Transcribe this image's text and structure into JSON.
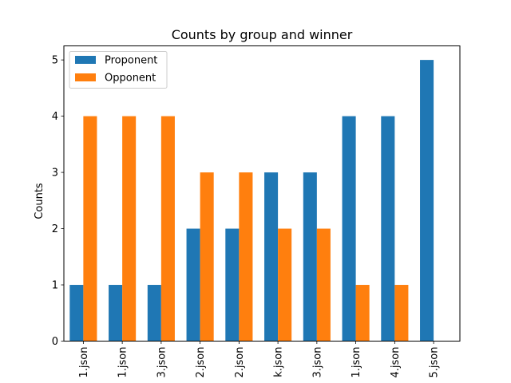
{
  "chart_data": {
    "type": "bar",
    "title": "Counts by group and winner",
    "xlabel": "",
    "ylabel": "Counts",
    "categories": [
      "1.json",
      "1.json",
      "3.json",
      "2.json",
      "2.json",
      "k.json",
      "3.json",
      "1.json",
      "4.json",
      "5.json"
    ],
    "series": [
      {
        "name": "Proponent",
        "color": "#1f77b4",
        "values": [
          1,
          1,
          1,
          2,
          2,
          3,
          3,
          4,
          4,
          5
        ]
      },
      {
        "name": "Opponent",
        "color": "#ff7f0e",
        "values": [
          4,
          4,
          4,
          3,
          3,
          2,
          2,
          1,
          1,
          0
        ]
      }
    ],
    "ylim": [
      0,
      5.25
    ],
    "yticks": [
      0,
      1,
      2,
      3,
      4,
      5
    ],
    "legend_position": "top-left",
    "grid": false
  }
}
